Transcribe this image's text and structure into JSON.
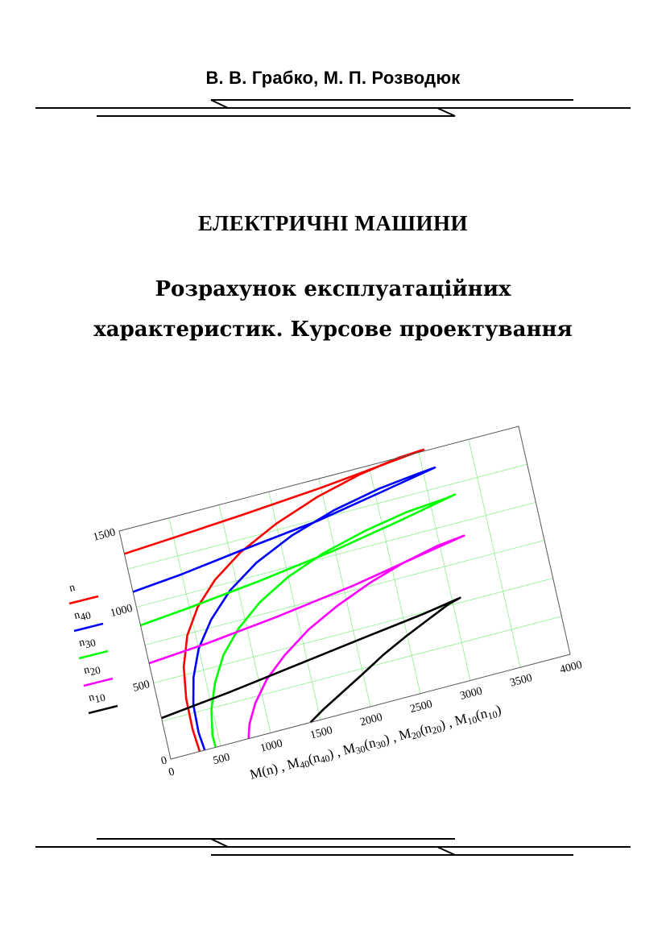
{
  "header": {
    "authors": "В. В. Грабко,  М. П. Розводюк"
  },
  "title": "ЕЛЕКТРИЧНІ МАШИНИ",
  "subtitle": {
    "line1": "Розрахунок експлуатаційних",
    "line2": "характеристик. Курсове проектування"
  },
  "chart_data": {
    "type": "line",
    "xlim": [
      0,
      4000
    ],
    "ylim": [
      0,
      1500
    ],
    "x_ticks": [
      "0",
      "500",
      "1000",
      "1500",
      "2000",
      "2500",
      "3000",
      "3500",
      "4000"
    ],
    "y_ticks": [
      "0",
      "500",
      "1000",
      "1500"
    ],
    "xlabel_parts": [
      {
        "t": "M(n) , M",
        "sub": false
      },
      {
        "t": "40",
        "sub": true
      },
      {
        "t": "(n",
        "sub": false
      },
      {
        "t": "40",
        "sub": true
      },
      {
        "t": ") , M",
        "sub": false
      },
      {
        "t": "30",
        "sub": true
      },
      {
        "t": "(n",
        "sub": false
      },
      {
        "t": "30",
        "sub": true
      },
      {
        "t": ") , M",
        "sub": false
      },
      {
        "t": "20",
        "sub": true
      },
      {
        "t": "(n",
        "sub": false
      },
      {
        "t": "20",
        "sub": true
      },
      {
        "t": ") , M",
        "sub": false
      },
      {
        "t": "10",
        "sub": true
      },
      {
        "t": "(n",
        "sub": false
      },
      {
        "t": "10",
        "sub": true
      },
      {
        "t": ")",
        "sub": false
      }
    ],
    "grid": true,
    "series": [
      {
        "base": "n",
        "sub": "",
        "color": "#ff0000",
        "points": [
          [
            290,
            0
          ],
          [
            270,
            150
          ],
          [
            275,
            350
          ],
          [
            320,
            550
          ],
          [
            420,
            740
          ],
          [
            580,
            900
          ],
          [
            800,
            1040
          ],
          [
            1100,
            1170
          ],
          [
            1500,
            1290
          ],
          [
            1950,
            1390
          ],
          [
            2400,
            1460
          ],
          [
            2800,
            1500
          ],
          [
            3050,
            1510
          ],
          [
            2600,
            1480
          ],
          [
            2000,
            1440
          ],
          [
            1200,
            1400
          ],
          [
            500,
            1370
          ],
          [
            0,
            1350
          ]
        ]
      },
      {
        "base": "n",
        "sub": "40",
        "color": "#0000ff",
        "points": [
          [
            340,
            0
          ],
          [
            320,
            120
          ],
          [
            330,
            300
          ],
          [
            390,
            470
          ],
          [
            500,
            640
          ],
          [
            680,
            800
          ],
          [
            920,
            950
          ],
          [
            1230,
            1080
          ],
          [
            1620,
            1190
          ],
          [
            2080,
            1280
          ],
          [
            2550,
            1340
          ],
          [
            2950,
            1370
          ],
          [
            3120,
            1380
          ],
          [
            2600,
            1320
          ],
          [
            1900,
            1240
          ],
          [
            1100,
            1180
          ],
          [
            500,
            1130
          ],
          [
            0,
            1100
          ]
        ]
      },
      {
        "base": "n",
        "sub": "30",
        "color": "#00ff00",
        "points": [
          [
            450,
            0
          ],
          [
            445,
            80
          ],
          [
            490,
            240
          ],
          [
            580,
            400
          ],
          [
            720,
            560
          ],
          [
            920,
            700
          ],
          [
            1180,
            830
          ],
          [
            1500,
            940
          ],
          [
            1880,
            1030
          ],
          [
            2320,
            1100
          ],
          [
            2760,
            1150
          ],
          [
            3150,
            1170
          ],
          [
            3250,
            1180
          ],
          [
            2700,
            1110
          ],
          [
            2000,
            1030
          ],
          [
            1200,
            960
          ],
          [
            500,
            910
          ],
          [
            0,
            880
          ]
        ]
      },
      {
        "base": "n",
        "sub": "20",
        "color": "#ff00ff",
        "points": [
          [
            780,
            0
          ],
          [
            820,
            90
          ],
          [
            920,
            210
          ],
          [
            1080,
            340
          ],
          [
            1300,
            460
          ],
          [
            1580,
            580
          ],
          [
            1900,
            680
          ],
          [
            2260,
            770
          ],
          [
            2620,
            840
          ],
          [
            2980,
            890
          ],
          [
            3250,
            910
          ],
          [
            2800,
            860
          ],
          [
            2100,
            780
          ],
          [
            1300,
            710
          ],
          [
            600,
            660
          ],
          [
            0,
            630
          ]
        ]
      },
      {
        "base": "n",
        "sub": "10",
        "color": "#000000",
        "points": [
          [
            1400,
            0
          ],
          [
            1550,
            60
          ],
          [
            1750,
            130
          ],
          [
            1980,
            210
          ],
          [
            2230,
            300
          ],
          [
            2490,
            380
          ],
          [
            2740,
            450
          ],
          [
            2960,
            510
          ],
          [
            3080,
            530
          ],
          [
            2700,
            490
          ],
          [
            2100,
            440
          ],
          [
            1400,
            380
          ],
          [
            700,
            320
          ],
          [
            0,
            270
          ]
        ]
      }
    ]
  }
}
